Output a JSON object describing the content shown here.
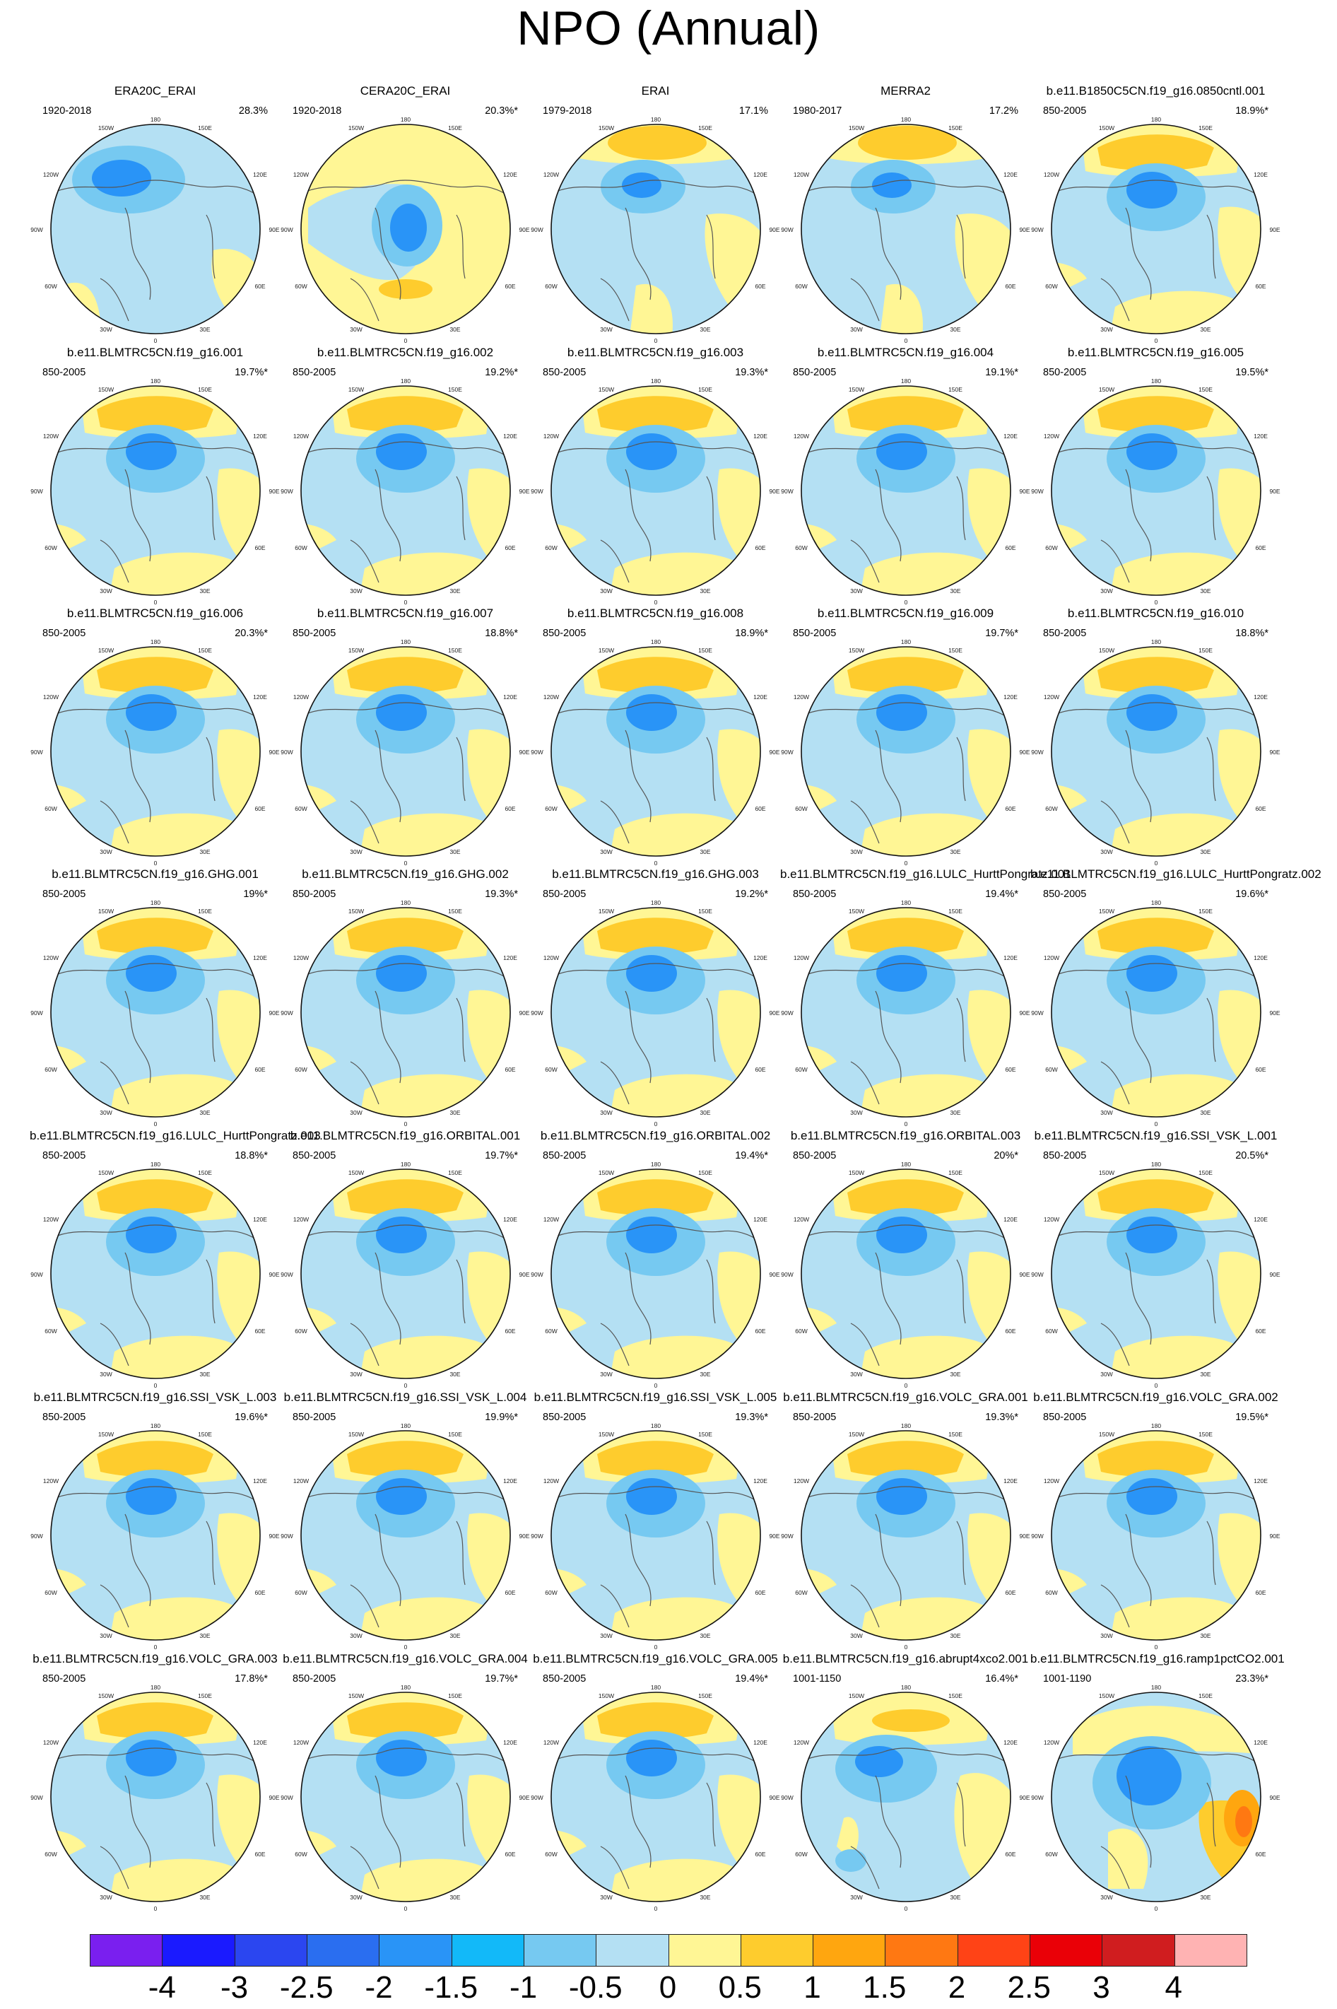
{
  "title": "NPO (Annual)",
  "colorbar": {
    "labels": [
      "-4",
      "-3",
      "-2.5",
      "-2",
      "-1.5",
      "-1",
      "-0.5",
      "0",
      "0.5",
      "1",
      "1.5",
      "2",
      "2.5",
      "3",
      "4"
    ],
    "colors": [
      "#7a1fef",
      "#1a1aff",
      "#2b46f0",
      "#2a6ef0",
      "#2994f7",
      "#12b9f9",
      "#76c9f1",
      "#b4e0f3",
      "#fff695",
      "#fecc2d",
      "#ffa60f",
      "#ff7812",
      "#ff4316",
      "#ea0007",
      "#d01d1f",
      "#ffb3b3"
    ]
  },
  "map_grid_labels": {
    "top": "180",
    "top_left": "150W",
    "top_right": "150E",
    "upper_left": "120W",
    "upper_right": "120E",
    "left": "90W",
    "right": "90E",
    "lower_left": "60W",
    "lower_right": "60E",
    "bottom_left": "30W",
    "bottom_right": "30E",
    "bottom": "0"
  },
  "panels": [
    {
      "name": "ERA20C_ERAI",
      "period": "1920-2018",
      "pct": "28.3%"
    },
    {
      "name": "CERA20C_ERAI",
      "period": "1920-2018",
      "pct": "20.3%*"
    },
    {
      "name": "ERAI",
      "period": "1979-2018",
      "pct": "17.1%"
    },
    {
      "name": "MERRA2",
      "period": "1980-2017",
      "pct": "17.2%"
    },
    {
      "name": "b.e11.B1850C5CN.f19_g16.0850cntl.001",
      "period": "850-2005",
      "pct": "18.9%*"
    },
    {
      "name": "b.e11.BLMTRC5CN.f19_g16.001",
      "period": "850-2005",
      "pct": "19.7%*"
    },
    {
      "name": "b.e11.BLMTRC5CN.f19_g16.002",
      "period": "850-2005",
      "pct": "19.2%*"
    },
    {
      "name": "b.e11.BLMTRC5CN.f19_g16.003",
      "period": "850-2005",
      "pct": "19.3%*"
    },
    {
      "name": "b.e11.BLMTRC5CN.f19_g16.004",
      "period": "850-2005",
      "pct": "19.1%*"
    },
    {
      "name": "b.e11.BLMTRC5CN.f19_g16.005",
      "period": "850-2005",
      "pct": "19.5%*"
    },
    {
      "name": "b.e11.BLMTRC5CN.f19_g16.006",
      "period": "850-2005",
      "pct": "20.3%*"
    },
    {
      "name": "b.e11.BLMTRC5CN.f19_g16.007",
      "period": "850-2005",
      "pct": "18.8%*"
    },
    {
      "name": "b.e11.BLMTRC5CN.f19_g16.008",
      "period": "850-2005",
      "pct": "18.9%*"
    },
    {
      "name": "b.e11.BLMTRC5CN.f19_g16.009",
      "period": "850-2005",
      "pct": "19.7%*"
    },
    {
      "name": "b.e11.BLMTRC5CN.f19_g16.010",
      "period": "850-2005",
      "pct": "18.8%*"
    },
    {
      "name": "b.e11.BLMTRC5CN.f19_g16.GHG.001",
      "period": "850-2005",
      "pct": "19%*"
    },
    {
      "name": "b.e11.BLMTRC5CN.f19_g16.GHG.002",
      "period": "850-2005",
      "pct": "19.3%*"
    },
    {
      "name": "b.e11.BLMTRC5CN.f19_g16.GHG.003",
      "period": "850-2005",
      "pct": "19.2%*"
    },
    {
      "name": "b.e11.BLMTRC5CN.f19_g16.LULC_HurttPongratz.001",
      "period": "850-2005",
      "pct": "19.4%*"
    },
    {
      "name": "b.e11.BLMTRC5CN.f19_g16.LULC_HurttPongratz.002",
      "period": "850-2005",
      "pct": "19.6%*"
    },
    {
      "name": "b.e11.BLMTRC5CN.f19_g16.LULC_HurttPongratz.003",
      "period": "850-2005",
      "pct": "18.8%*"
    },
    {
      "name": "b.e11.BLMTRC5CN.f19_g16.ORBITAL.001",
      "period": "850-2005",
      "pct": "19.7%*"
    },
    {
      "name": "b.e11.BLMTRC5CN.f19_g16.ORBITAL.002",
      "period": "850-2005",
      "pct": "19.4%*"
    },
    {
      "name": "b.e11.BLMTRC5CN.f19_g16.ORBITAL.003",
      "period": "850-2005",
      "pct": "20%*"
    },
    {
      "name": "b.e11.BLMTRC5CN.f19_g16.SSI_VSK_L.001",
      "period": "850-2005",
      "pct": "20.5%*"
    },
    {
      "name": "b.e11.BLMTRC5CN.f19_g16.SSI_VSK_L.003",
      "period": "850-2005",
      "pct": "19.6%*"
    },
    {
      "name": "b.e11.BLMTRC5CN.f19_g16.SSI_VSK_L.004",
      "period": "850-2005",
      "pct": "19.9%*"
    },
    {
      "name": "b.e11.BLMTRC5CN.f19_g16.SSI_VSK_L.005",
      "period": "850-2005",
      "pct": "19.3%*"
    },
    {
      "name": "b.e11.BLMTRC5CN.f19_g16.VOLC_GRA.001",
      "period": "850-2005",
      "pct": "19.3%*"
    },
    {
      "name": "b.e11.BLMTRC5CN.f19_g16.VOLC_GRA.002",
      "period": "850-2005",
      "pct": "19.5%*"
    },
    {
      "name": "b.e11.BLMTRC5CN.f19_g16.VOLC_GRA.003",
      "period": "850-2005",
      "pct": "17.8%*"
    },
    {
      "name": "b.e11.BLMTRC5CN.f19_g16.VOLC_GRA.004",
      "period": "850-2005",
      "pct": "19.7%*"
    },
    {
      "name": "b.e11.BLMTRC5CN.f19_g16.VOLC_GRA.005",
      "period": "850-2005",
      "pct": "19.4%*"
    },
    {
      "name": "b.e11.BLMTRC5CN.f19_g16.abrupt4xco2.001",
      "period": "1001-1150",
      "pct": "16.4%*"
    },
    {
      "name": "b.e11.BLMTRC5CN.f19_g16.ramp1pctCO2.001",
      "period": "1001-1190",
      "pct": "23.3%*"
    }
  ]
}
